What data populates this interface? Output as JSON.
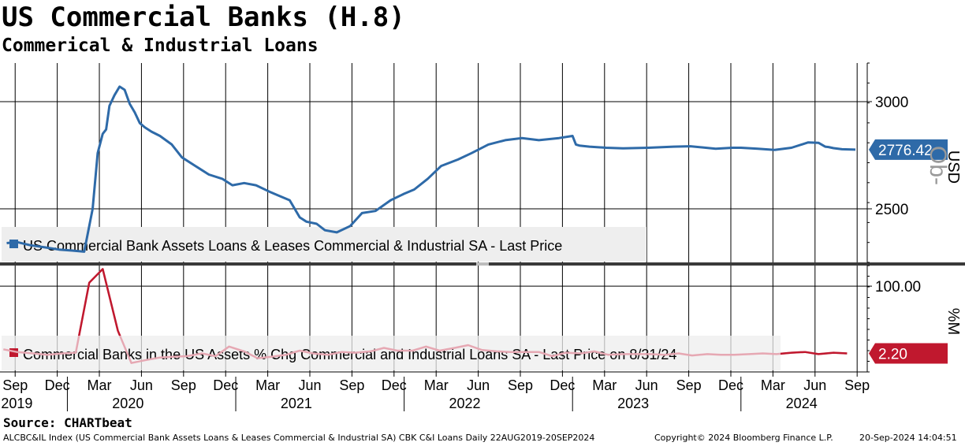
{
  "title": "US Commercial Banks (H.8)",
  "subtitle": "Commerical & Industrial Loans",
  "source": "Source: CHARTbeat",
  "footer": {
    "left": "ALCBC&IL Index (US Commercial Bank Assets Loans & Leases Commercial & Industrial SA) CBK C&I Loans  Daily 22AUG2019-20SEP2024",
    "copyright": "Copyright© 2024 Bloomberg Finance L.P.",
    "timestamp": "20-Sep-2024 14:04:51"
  },
  "colors": {
    "upper_line": "#2e6aa8",
    "lower_line": "#c0182e",
    "lower_faint": "#e6a8b3",
    "grid": "#000000"
  },
  "chart_data": [
    {
      "type": "line",
      "panel": "upper",
      "ylabel": "USD",
      "watermark": "Ob-",
      "ylim": [
        2250,
        3180
      ],
      "y_ticks": [
        {
          "value": 2500,
          "label": "2500"
        },
        {
          "value": 3000,
          "label": "3000"
        }
      ],
      "last_value": "2776.42",
      "legend": "US Commercial Bank Assets Loans & Leases Commercial & Industrial SA - Last Price",
      "series": [
        {
          "name": "US Commercial Bank Assets Loans & Leases Commercial & Industrial SA - Last Price",
          "x": [
            2019.64,
            2019.7,
            2019.78,
            2019.87,
            2019.95,
            2020.03,
            2020.1,
            2020.15,
            2020.18,
            2020.21,
            2020.23,
            2020.25,
            2020.28,
            2020.31,
            2020.34,
            2020.37,
            2020.4,
            2020.43,
            2020.46,
            2020.5,
            2020.55,
            2020.62,
            2020.68,
            2020.76,
            2020.84,
            2020.92,
            2020.98,
            2021.05,
            2021.12,
            2021.2,
            2021.26,
            2021.32,
            2021.38,
            2021.42,
            2021.48,
            2021.53,
            2021.6,
            2021.68,
            2021.75,
            2021.83,
            2021.92,
            2022.0,
            2022.06,
            2022.14,
            2022.22,
            2022.32,
            2022.4,
            2022.5,
            2022.6,
            2022.7,
            2022.8,
            2022.92,
            2023.0,
            2023.02,
            2023.04,
            2023.1,
            2023.2,
            2023.3,
            2023.45,
            2023.6,
            2023.7,
            2023.85,
            2023.95,
            2024.0,
            2024.1,
            2024.2,
            2024.3,
            2024.4,
            2024.46,
            2024.5,
            2024.52,
            2024.55,
            2024.6,
            2024.68
          ],
          "values": [
            2340,
            2345,
            2330,
            2320,
            2310,
            2305,
            2300,
            2500,
            2760,
            2850,
            2870,
            2980,
            3030,
            3070,
            3055,
            2990,
            2950,
            2900,
            2880,
            2860,
            2840,
            2800,
            2740,
            2700,
            2660,
            2640,
            2610,
            2620,
            2610,
            2580,
            2560,
            2540,
            2460,
            2440,
            2430,
            2400,
            2390,
            2420,
            2480,
            2490,
            2540,
            2570,
            2590,
            2640,
            2700,
            2730,
            2760,
            2800,
            2820,
            2830,
            2820,
            2830,
            2840,
            2800,
            2795,
            2790,
            2785,
            2782,
            2785,
            2790,
            2792,
            2780,
            2785,
            2785,
            2780,
            2775,
            2785,
            2810,
            2808,
            2790,
            2788,
            2783,
            2778,
            2776
          ]
        }
      ]
    },
    {
      "type": "line",
      "panel": "lower",
      "ylabel": "%M",
      "ylim": [
        -25,
        130
      ],
      "y_ticks": [
        {
          "value": 100,
          "label": "100.00"
        }
      ],
      "last_value": "2.20",
      "legend": "Commercial Banks in the US Assets % Chg Commercial and Industrial Loans SA - Last Price on 8/31/24",
      "series": [
        {
          "name": "Commercial Banks in the US Assets % Chg Commercial and Industrial Loans SA - Last Price on 8/31/24",
          "x": [
            2019.62,
            2019.7,
            2019.8,
            2019.88,
            2019.97,
            2020.05,
            2020.13,
            2020.21,
            2020.3,
            2020.38,
            2020.46,
            2020.55,
            2020.63,
            2020.71,
            2020.8,
            2020.88,
            2020.96,
            2021.05,
            2021.13,
            2021.21,
            2021.3,
            2021.38,
            2021.46,
            2021.55,
            2021.63,
            2021.71,
            2021.8,
            2021.88,
            2021.96,
            2022.05,
            2022.13,
            2022.21,
            2022.3,
            2022.38,
            2022.46,
            2022.55,
            2022.63,
            2022.71,
            2022.8,
            2022.88,
            2022.96,
            2023.05,
            2023.13,
            2023.21,
            2023.3,
            2023.38,
            2023.46,
            2023.55,
            2023.63,
            2023.71,
            2023.8,
            2023.88,
            2023.96,
            2024.05,
            2024.13,
            2024.21,
            2024.3,
            2024.38,
            2024.46,
            2024.55,
            2024.63
          ],
          "values": [
            8,
            4,
            2,
            0,
            2,
            3,
            105,
            125,
            35,
            -12,
            -8,
            -4,
            -3,
            -2,
            2,
            -2,
            12,
            5,
            -5,
            -3,
            0,
            6,
            2,
            0,
            4,
            3,
            5,
            10,
            6,
            6,
            12,
            6,
            10,
            14,
            7,
            5,
            4,
            4,
            4,
            -2,
            3,
            2,
            5,
            0,
            1,
            1,
            1,
            0,
            2,
            -1,
            1,
            0,
            0,
            1,
            2,
            1,
            3,
            4,
            1,
            3,
            2
          ]
        }
      ]
    }
  ],
  "x_axis": {
    "range": [
      2019.6,
      2024.75
    ],
    "months": [
      {
        "x": 2019.69,
        "label": "Sep"
      },
      {
        "x": 2019.94,
        "label": "Dec"
      },
      {
        "x": 2020.19,
        "label": "Mar"
      },
      {
        "x": 2020.44,
        "label": "Jun"
      },
      {
        "x": 2020.69,
        "label": "Sep"
      },
      {
        "x": 2020.94,
        "label": "Dec"
      },
      {
        "x": 2021.19,
        "label": "Mar"
      },
      {
        "x": 2021.44,
        "label": "Jun"
      },
      {
        "x": 2021.69,
        "label": "Sep"
      },
      {
        "x": 2021.94,
        "label": "Dec"
      },
      {
        "x": 2022.19,
        "label": "Mar"
      },
      {
        "x": 2022.44,
        "label": "Jun"
      },
      {
        "x": 2022.69,
        "label": "Sep"
      },
      {
        "x": 2022.94,
        "label": "Dec"
      },
      {
        "x": 2023.19,
        "label": "Mar"
      },
      {
        "x": 2023.44,
        "label": "Jun"
      },
      {
        "x": 2023.69,
        "label": "Sep"
      },
      {
        "x": 2023.94,
        "label": "Dec"
      },
      {
        "x": 2024.19,
        "label": "Mar"
      },
      {
        "x": 2024.44,
        "label": "Jun"
      },
      {
        "x": 2024.69,
        "label": "Sep"
      }
    ],
    "years": [
      {
        "x": 2019.7,
        "label": "2019"
      },
      {
        "x": 2020.36,
        "label": "2020"
      },
      {
        "x": 2021.36,
        "label": "2021"
      },
      {
        "x": 2022.36,
        "label": "2022"
      },
      {
        "x": 2023.36,
        "label": "2023"
      },
      {
        "x": 2024.36,
        "label": "2024"
      }
    ],
    "year_dividers": [
      2020.0,
      2021.0,
      2022.0,
      2023.0,
      2024.0
    ]
  }
}
